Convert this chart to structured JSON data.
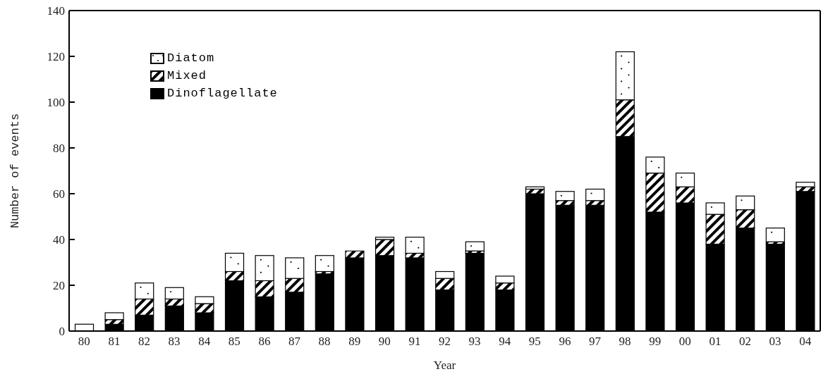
{
  "chart_data": {
    "type": "bar",
    "stacked": true,
    "xlabel": "Year",
    "ylabel": "Number of events",
    "categories": [
      "80",
      "81",
      "82",
      "83",
      "84",
      "85",
      "86",
      "87",
      "88",
      "89",
      "90",
      "91",
      "92",
      "93",
      "94",
      "95",
      "96",
      "97",
      "98",
      "99",
      "00",
      "01",
      "02",
      "03",
      "04"
    ],
    "series": [
      {
        "name": "Dinoflagellate",
        "color": "#000000",
        "values": [
          0,
          3,
          7,
          11,
          8,
          22,
          15,
          17,
          25,
          32,
          33,
          32,
          18,
          34,
          18,
          60,
          55,
          55,
          85,
          52,
          56,
          38,
          45,
          38,
          61
        ]
      },
      {
        "name": "Mixed",
        "color": "#000000",
        "values": [
          0,
          2,
          7,
          3,
          4,
          4,
          7,
          6,
          1,
          3,
          7,
          2,
          5,
          1,
          3,
          2,
          2,
          2,
          16,
          17,
          7,
          13,
          8,
          1,
          2
        ]
      },
      {
        "name": "Diatom",
        "color": "#ffffff",
        "values": [
          3,
          3,
          7,
          5,
          3,
          8,
          11,
          9,
          7,
          0,
          1,
          7,
          3,
          4,
          3,
          1,
          4,
          5,
          21,
          7,
          6,
          5,
          6,
          6,
          2
        ]
      }
    ],
    "ylim": [
      0,
      140
    ],
    "yticks": [
      0,
      20,
      40,
      60,
      80,
      100,
      120,
      140
    ],
    "grid": false,
    "legend": "top left"
  }
}
